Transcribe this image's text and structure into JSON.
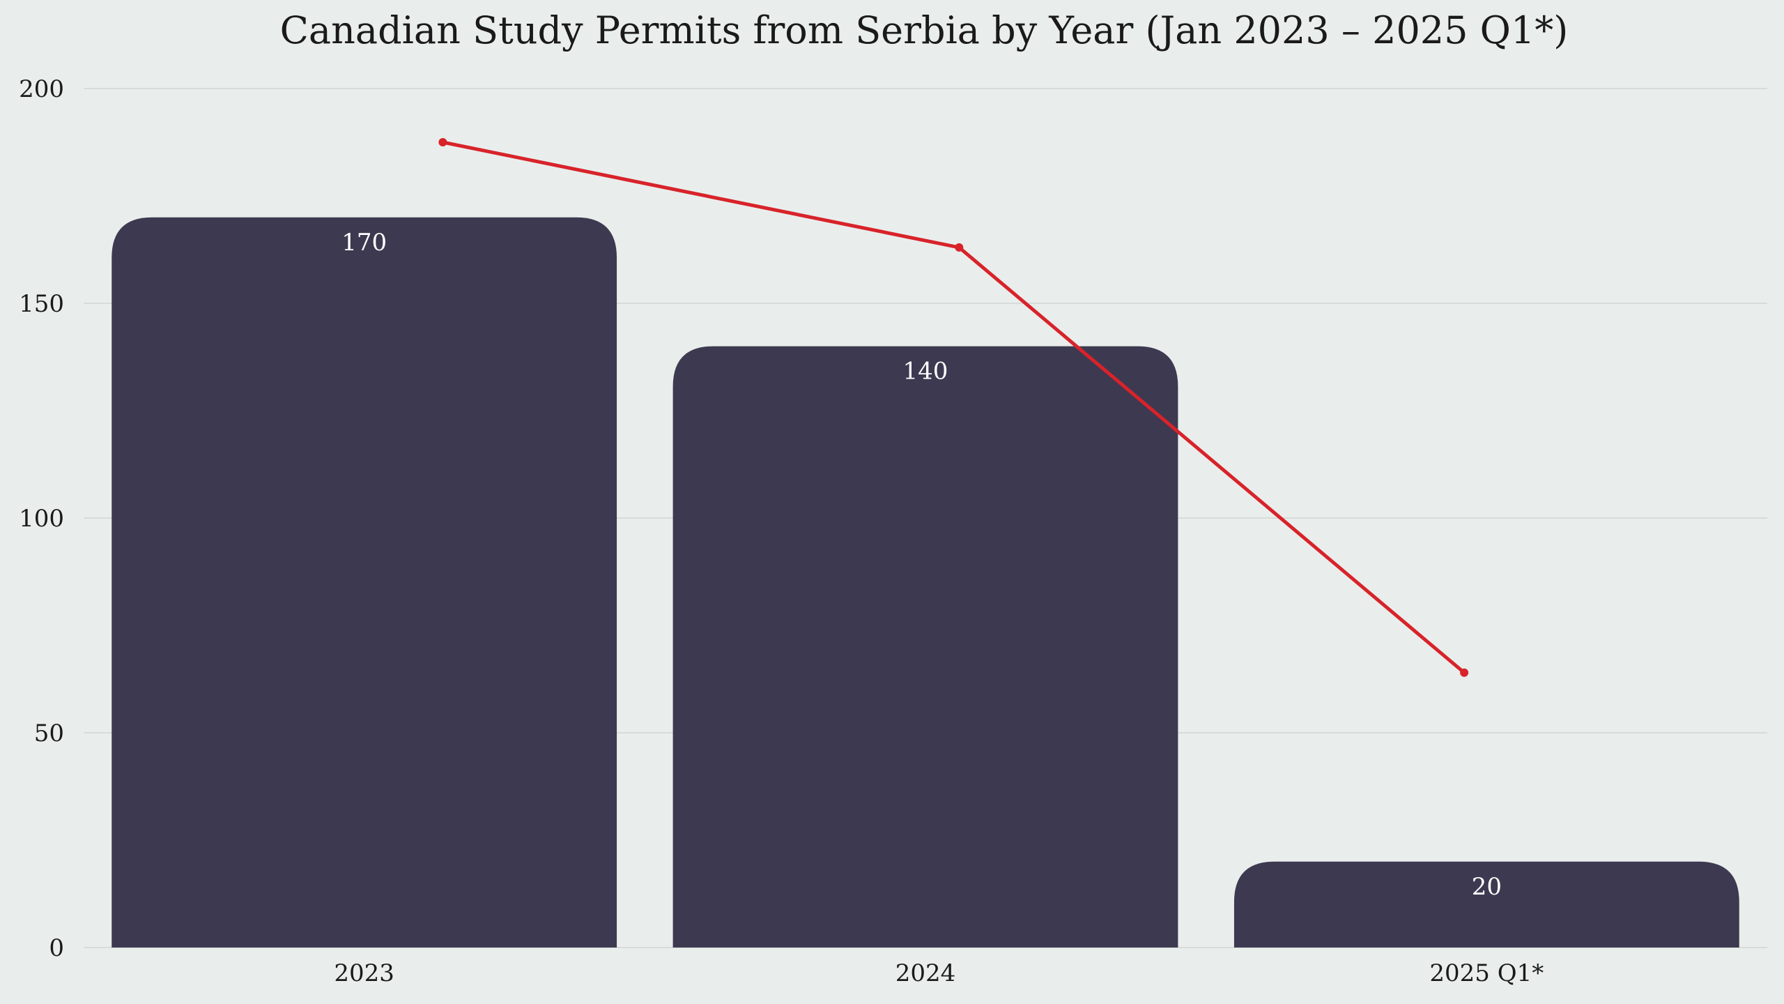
{
  "chart_data": {
    "type": "bar",
    "title": "Canadian Study Permits from Serbia by Year (Jan 2023 – 2025 Q1*)",
    "xlabel": "",
    "ylabel": "",
    "categories": [
      "2023",
      "2024",
      "2025 Q1*"
    ],
    "values": [
      170,
      140,
      20
    ],
    "value_labels": [
      "170",
      "140",
      "20"
    ],
    "ylim": [
      0,
      200
    ],
    "yticks": [
      0,
      50,
      100,
      150,
      200
    ],
    "ytick_labels": [
      "0",
      "50",
      "100",
      "150",
      "200"
    ],
    "grid": true,
    "legend": "none",
    "overlay_line": {
      "type": "line",
      "values": [
        187.5,
        163,
        64
      ]
    },
    "colors": {
      "background": "#e9eeec",
      "bar": "#3d3950",
      "line": "#d8232a",
      "bar_label": "#ffffff",
      "grid": "#d7dcda",
      "text": "#1a1a1a"
    }
  }
}
